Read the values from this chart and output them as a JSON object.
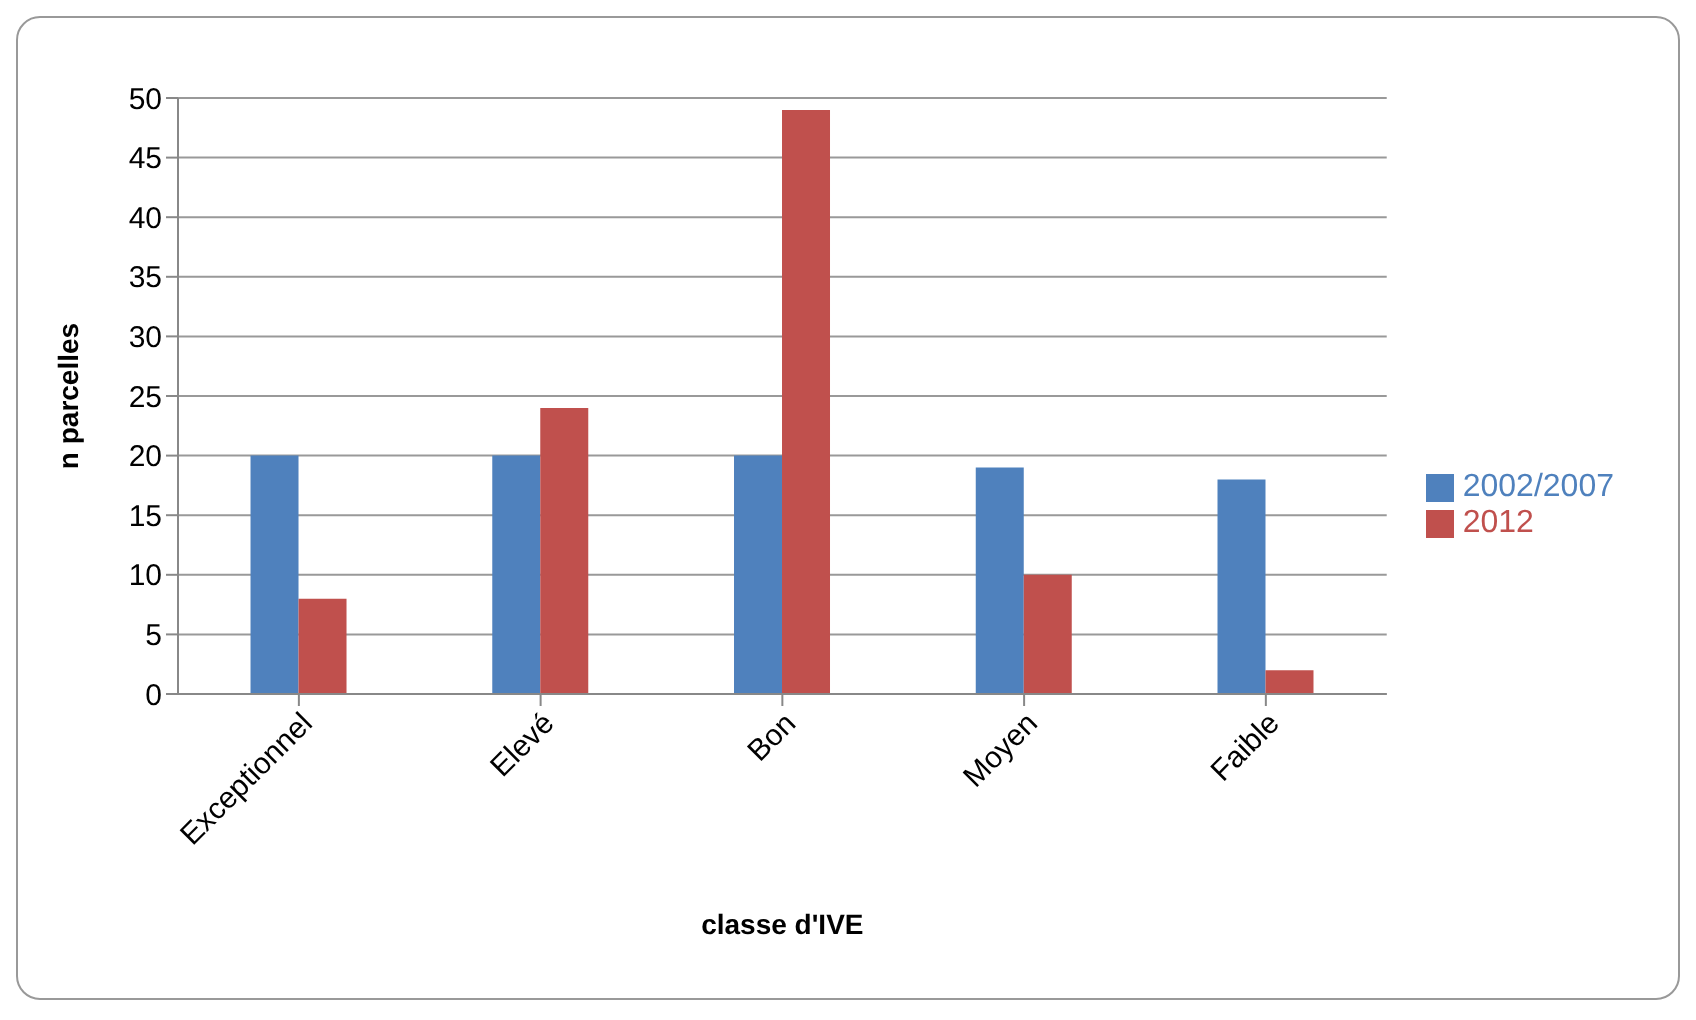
{
  "chart_data": {
    "type": "bar",
    "xlabel": "classe d'IVE",
    "ylabel": "n parcelles",
    "categories": [
      "Exceptionnel",
      "Elevé",
      "Bon",
      "Moyen",
      "Faible"
    ],
    "series": [
      {
        "name": "2002/2007",
        "color": "#4f81bd",
        "values": [
          20,
          20,
          20,
          19,
          18
        ]
      },
      {
        "name": "2012",
        "color": "#c0504d",
        "values": [
          8,
          24,
          49,
          10,
          2
        ]
      }
    ],
    "ylim": [
      0,
      50
    ],
    "yticks": [
      0,
      5,
      10,
      15,
      20,
      25,
      30,
      35,
      40,
      45,
      50
    ],
    "grid": "y",
    "legend": "right"
  }
}
